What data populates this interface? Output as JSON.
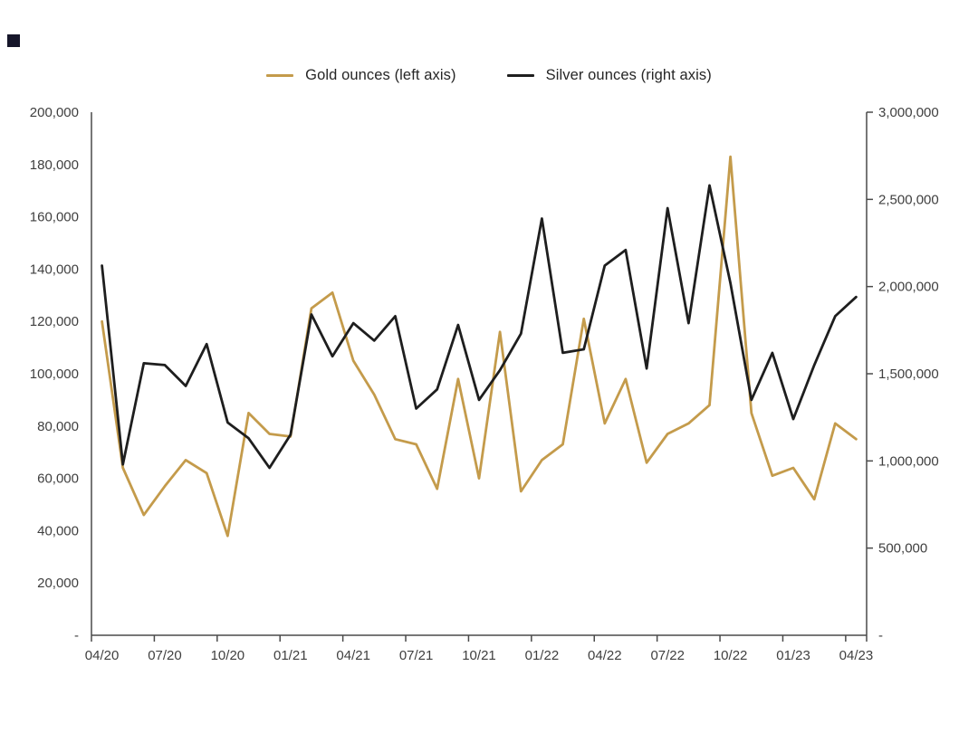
{
  "decorations": {
    "corner_square_color": "#16162a"
  },
  "legend": {
    "gold_label": "Gold ounces (left axis)",
    "silver_label": "Silver ounces (right axis)"
  },
  "chart_data": {
    "type": "line",
    "title": "",
    "grid": false,
    "legend_position": "top-center",
    "x": [
      "04/20",
      "05/20",
      "06/20",
      "07/20",
      "08/20",
      "09/20",
      "10/20",
      "11/20",
      "12/20",
      "01/21",
      "02/21",
      "03/21",
      "04/21",
      "05/21",
      "06/21",
      "07/21",
      "08/21",
      "09/21",
      "10/21",
      "11/21",
      "12/21",
      "01/22",
      "02/22",
      "03/22",
      "04/22",
      "05/22",
      "06/22",
      "07/22",
      "08/22",
      "09/22",
      "10/22",
      "11/22",
      "12/22",
      "01/23",
      "02/23",
      "03/23",
      "04/23"
    ],
    "x_tick_labels": [
      "04/20",
      "07/20",
      "10/20",
      "01/21",
      "04/21",
      "07/21",
      "10/21",
      "01/22",
      "04/22",
      "07/22",
      "10/22",
      "01/23",
      "04/23"
    ],
    "left_axis": {
      "min": 0,
      "max": 200000,
      "step": 20000,
      "zero_label": "-",
      "tick_labels": [
        "200,000",
        "180,000",
        "160,000",
        "140,000",
        "120,000",
        "100,000",
        "80,000",
        "60,000",
        "40,000",
        "20,000",
        "-"
      ]
    },
    "right_axis": {
      "min": 0,
      "max": 3000000,
      "step": 500000,
      "zero_label": "-",
      "tick_labels": [
        "3,000,000",
        "2,500,000",
        "2,000,000",
        "1,500,000",
        "1,000,000",
        "500,000",
        "-"
      ]
    },
    "series": [
      {
        "name": "Gold ounces (left axis)",
        "axis": "left",
        "color": "#C49B4B",
        "values": [
          120000,
          64000,
          46000,
          57000,
          67000,
          62000,
          38000,
          85000,
          77000,
          76000,
          125000,
          131000,
          105000,
          92000,
          75000,
          73000,
          56000,
          98000,
          60000,
          116000,
          55000,
          67000,
          73000,
          121000,
          81000,
          98000,
          66000,
          77000,
          81000,
          88000,
          183000,
          85000,
          61000,
          64000,
          52000,
          81000,
          75000
        ]
      },
      {
        "name": "Silver ounces (right axis)",
        "axis": "right",
        "color": "#1E1E1E",
        "values": [
          2120000,
          980000,
          1560000,
          1550000,
          1430000,
          1670000,
          1220000,
          1130000,
          960000,
          1150000,
          1840000,
          1600000,
          1790000,
          1690000,
          1830000,
          1300000,
          1410000,
          1780000,
          1350000,
          1520000,
          1730000,
          2390000,
          1620000,
          1640000,
          2120000,
          2210000,
          1530000,
          2450000,
          1790000,
          2580000,
          2020000,
          1350000,
          1620000,
          1240000,
          1550000,
          1830000,
          1940000
        ]
      }
    ]
  }
}
